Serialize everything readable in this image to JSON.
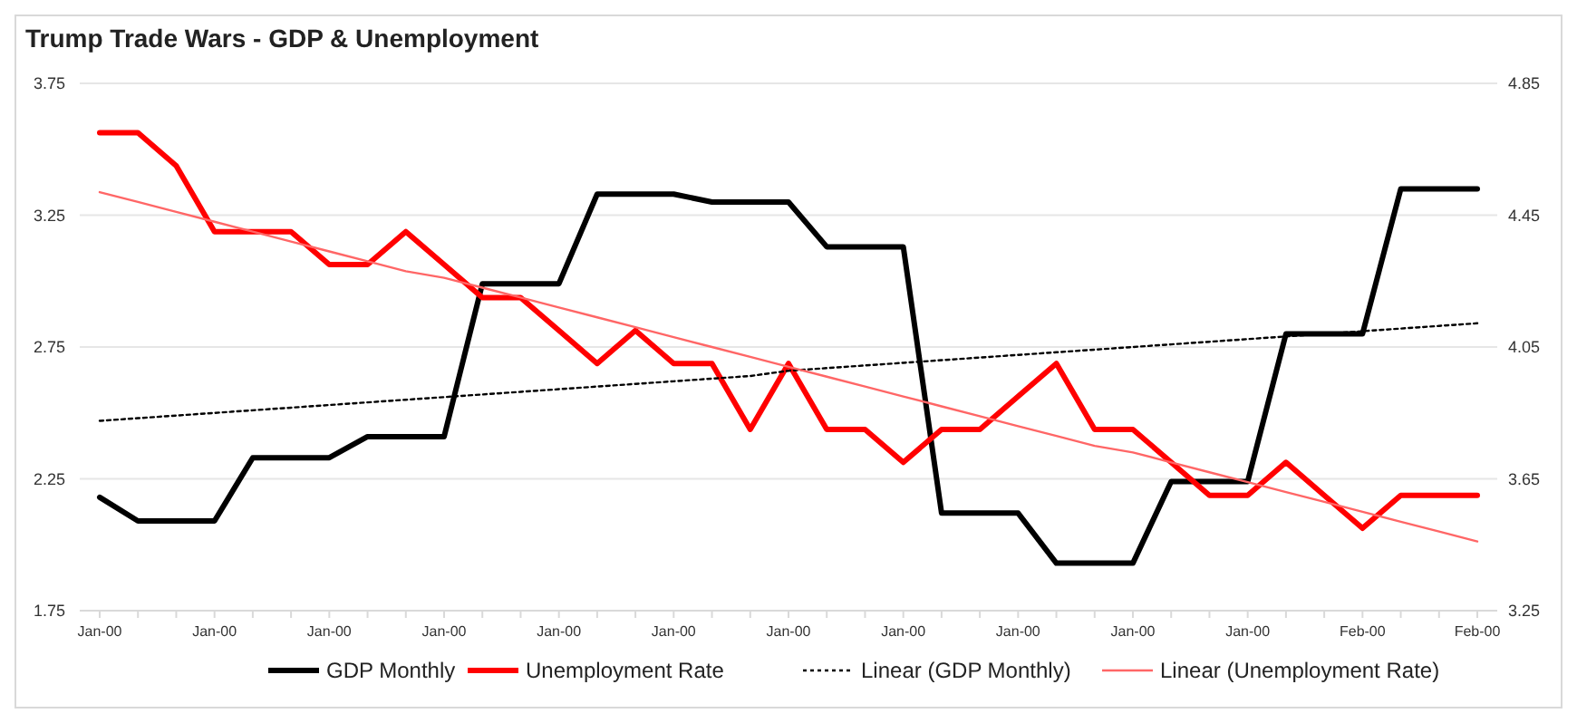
{
  "chart_data": {
    "type": "line",
    "title": "Trump Trade Wars - GDP & Unemployment",
    "categories": [
      "Jan-00",
      null,
      null,
      "Jan-00",
      null,
      null,
      "Jan-00",
      null,
      null,
      "Jan-00",
      null,
      null,
      "Jan-00",
      null,
      null,
      "Jan-00",
      null,
      null,
      "Jan-00",
      null,
      null,
      "Jan-00",
      null,
      null,
      "Jan-00",
      null,
      null,
      "Jan-00",
      null,
      null,
      "Jan-00",
      null,
      null,
      "Feb-00",
      null,
      null,
      "Feb-00"
    ],
    "series": [
      {
        "name": "GDP Monthly",
        "color": "#000000",
        "line_style": "solid",
        "values": [
          2.18,
          2.09,
          2.09,
          2.09,
          2.33,
          2.33,
          2.33,
          2.41,
          2.41,
          2.41,
          2.99,
          2.99,
          2.99,
          3.33,
          3.33,
          3.33,
          3.3,
          3.3,
          3.3,
          3.13,
          3.13,
          3.13,
          2.12,
          2.12,
          2.12,
          1.93,
          1.93,
          1.93,
          2.24,
          2.24,
          2.24,
          2.8,
          2.8,
          2.8,
          3.35,
          3.35,
          3.35
        ]
      },
      {
        "name": "Unemployment Rate",
        "color": "#ff0000",
        "axis": "y2",
        "line_style": "solid",
        "values": [
          4.7,
          4.7,
          4.6,
          4.4,
          4.4,
          4.4,
          4.3,
          4.3,
          4.4,
          4.3,
          4.2,
          4.2,
          4.1,
          4.0,
          4.1,
          4.0,
          4.0,
          3.8,
          4.0,
          3.8,
          3.8,
          3.7,
          3.8,
          3.8,
          3.9,
          4.0,
          3.8,
          3.8,
          3.7,
          3.6,
          3.6,
          3.7,
          3.6,
          3.5,
          3.6,
          3.6,
          3.6
        ]
      },
      {
        "name": "Linear (GDP Monthly)",
        "color": "#000000",
        "line_style": "dotted",
        "values": [
          2.47,
          2.48,
          2.49,
          2.5,
          2.51,
          2.52,
          2.53,
          2.54,
          2.55,
          2.56,
          2.57,
          2.58,
          2.59,
          2.6,
          2.61,
          2.62,
          2.63,
          2.64,
          2.66,
          2.67,
          2.68,
          2.69,
          2.7,
          2.71,
          2.72,
          2.73,
          2.74,
          2.75,
          2.76,
          2.77,
          2.78,
          2.79,
          2.8,
          2.81,
          2.82,
          2.83,
          2.84
        ]
      },
      {
        "name": "Linear (Unemployment Rate)",
        "color": "#ff6666",
        "axis": "y2",
        "line_style": "solid",
        "values": [
          4.52,
          4.49,
          4.46,
          4.43,
          4.4,
          4.37,
          4.34,
          4.31,
          4.28,
          4.26,
          4.23,
          4.2,
          4.17,
          4.14,
          4.11,
          4.08,
          4.05,
          4.02,
          3.99,
          3.96,
          3.93,
          3.9,
          3.87,
          3.84,
          3.81,
          3.78,
          3.75,
          3.73,
          3.7,
          3.67,
          3.64,
          3.61,
          3.58,
          3.55,
          3.52,
          3.49,
          3.46
        ]
      }
    ],
    "ylim": [
      1.75,
      3.75
    ],
    "yticks": [
      1.75,
      2.25,
      2.75,
      3.25,
      3.75
    ],
    "y2lim": [
      3.25,
      4.85
    ],
    "y2ticks": [
      3.25,
      3.65,
      4.05,
      4.45,
      4.85
    ],
    "grid": "y",
    "legend": "bottom",
    "marker": "none"
  }
}
